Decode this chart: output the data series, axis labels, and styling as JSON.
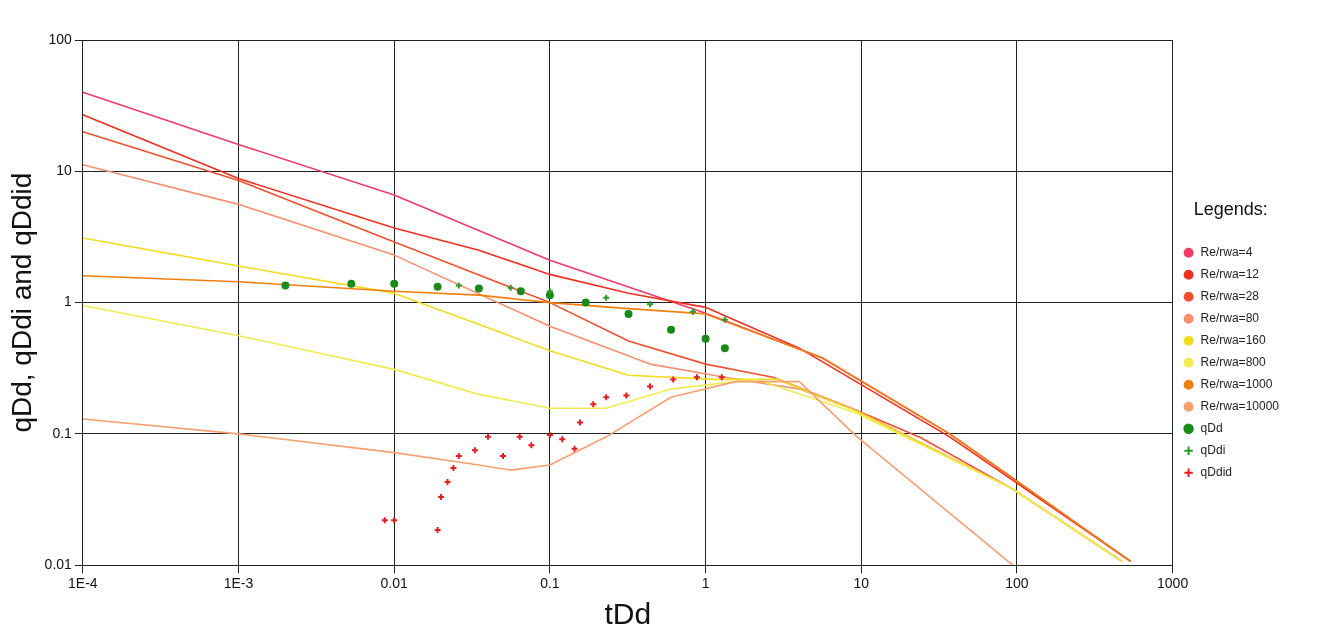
{
  "chart_data": {
    "type": "line",
    "xlabel": "tDd",
    "ylabel": "qDd, qDdi and qDdid",
    "legend_title": "Legends:",
    "legend": "right",
    "grid": true,
    "log": "xy",
    "xlim": [
      0.0001,
      1000
    ],
    "xticks": [
      {
        "value": 0.0001,
        "label": "1E-4"
      },
      {
        "value": 0.001,
        "label": "1E-3"
      },
      0.01,
      0.1,
      1,
      10,
      100,
      1000
    ],
    "ylim": [
      0.01,
      100
    ],
    "yticks": [
      0.01,
      0.1,
      1,
      10,
      100
    ],
    "series": [
      {
        "name": "Re/rwa=4",
        "color": "#f03c64",
        "x": [
          0.0001,
          0.001,
          0.01,
          0.1,
          0.94,
          5.6,
          37,
          94,
          537
        ],
        "values": [
          40,
          16,
          6.6,
          2.1,
          0.85,
          0.38,
          0.1,
          0.046,
          0.0107
        ]
      },
      {
        "name": "Re/rwa=12",
        "color": "#ee3020",
        "x": [
          0.0001,
          0.001,
          0.01,
          0.035,
          0.1,
          0.32,
          1,
          4.0,
          37,
          537
        ],
        "values": [
          27,
          8.8,
          3.7,
          2.5,
          1.64,
          1.18,
          0.92,
          0.45,
          0.095,
          0.0107
        ]
      },
      {
        "name": "Re/rwa=28",
        "color": "#f05030",
        "x": [
          0.0001,
          0.001,
          0.01,
          0.1,
          0.32,
          1,
          2.7,
          9.2,
          24,
          94,
          474
        ],
        "values": [
          20,
          8.5,
          2.9,
          1,
          0.51,
          0.34,
          0.27,
          0.152,
          0.094,
          0.038,
          0.0107
        ]
      },
      {
        "name": "Re/rwa=80",
        "color": "#f59070",
        "x": [
          0.0001,
          0.001,
          0.01,
          0.1,
          0.44,
          1.33,
          4.0,
          9.2,
          94,
          474
        ],
        "values": [
          11.2,
          5.6,
          2.3,
          0.66,
          0.34,
          0.27,
          0.22,
          0.152,
          0.038,
          0.0107
        ]
      },
      {
        "name": "Re/rwa=160",
        "color": "#f0dc20",
        "x": [
          0.0001,
          0.001,
          0.01,
          0.1,
          0.32,
          1.14,
          2.9,
          9.2,
          94,
          474
        ],
        "values": [
          3.1,
          1.9,
          1.18,
          0.43,
          0.28,
          0.26,
          0.26,
          0.15,
          0.038,
          0.0107
        ]
      },
      {
        "name": "Re/rwa=800",
        "color": "#f0ec50",
        "x": [
          0.0001,
          0.001,
          0.01,
          0.035,
          0.1,
          0.23,
          0.6,
          2.1,
          9.2,
          94,
          474
        ],
        "values": [
          0.95,
          0.56,
          0.31,
          0.2,
          0.157,
          0.157,
          0.22,
          0.26,
          0.145,
          0.038,
          0.0107
        ]
      },
      {
        "name": "Re/rwa=1000",
        "color": "#f08010",
        "x": [
          0.0001,
          0.001,
          0.01,
          0.035,
          0.1,
          0.32,
          1,
          5.6,
          37,
          94,
          537
        ],
        "values": [
          1.6,
          1.44,
          1.22,
          1.14,
          1,
          0.9,
          0.82,
          0.38,
          0.1,
          0.046,
          0.0107
        ]
      },
      {
        "name": "Re/rwa=10000",
        "color": "#f5a070",
        "x": [
          0.0001,
          0.001,
          0.01,
          0.035,
          0.056,
          0.1,
          0.23,
          0.6,
          1.56,
          4.0,
          9.2,
          94
        ],
        "values": [
          0.13,
          0.1,
          0.072,
          0.058,
          0.053,
          0.058,
          0.095,
          0.19,
          0.25,
          0.25,
          0.097,
          0.01
        ]
      },
      {
        "name": "qDd",
        "type": "scatter",
        "marker": "circle",
        "color": "#1a8a1a",
        "x": [
          0.002,
          0.0053,
          0.01,
          0.019,
          0.035,
          0.065,
          0.1,
          0.17,
          0.32,
          0.6,
          1,
          1.33
        ],
        "values": [
          1.35,
          1.39,
          1.39,
          1.32,
          1.28,
          1.22,
          1.14,
          1,
          0.82,
          0.62,
          0.53,
          0.45
        ]
      },
      {
        "name": "qDdi",
        "type": "scatter",
        "marker": "cross",
        "color": "#2a9a2a",
        "x": [
          0.026,
          0.056,
          0.1,
          0.23,
          0.44,
          0.83,
          1.33
        ],
        "values": [
          1.35,
          1.3,
          1.22,
          1.09,
          0.97,
          0.85,
          0.74
        ]
      },
      {
        "name": "qDdid",
        "type": "scatter",
        "marker": "cross",
        "color": "#e02020",
        "x": [
          0.0087,
          0.01,
          0.019,
          0.02,
          0.022,
          0.024,
          0.026,
          0.033,
          0.04,
          0.05,
          0.064,
          0.076,
          0.1,
          0.12,
          0.144,
          0.156,
          0.19,
          0.23,
          0.31,
          0.44,
          0.62,
          0.88,
          1.27
        ],
        "values": [
          0.022,
          0.022,
          0.0185,
          0.033,
          0.043,
          0.055,
          0.068,
          0.075,
          0.095,
          0.068,
          0.095,
          0.082,
          0.098,
          0.091,
          0.077,
          0.122,
          0.168,
          0.19,
          0.196,
          0.23,
          0.26,
          0.27,
          0.27
        ]
      }
    ]
  }
}
